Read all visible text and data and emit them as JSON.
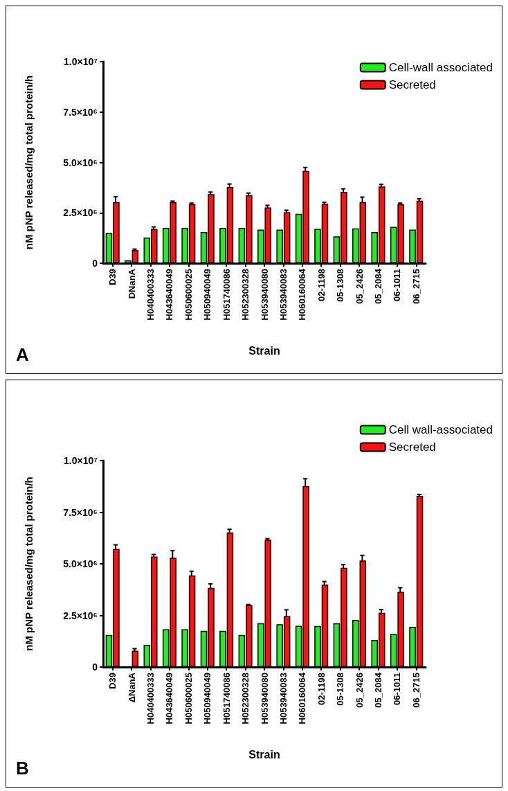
{
  "chart_data": [
    {
      "type": "bar",
      "xlabel": "Strain",
      "ylabel": "nM pNP released/mg total protein/h",
      "annotations": [
        "A"
      ],
      "legend": "top right",
      "grid": false,
      "categories": [
        "D39",
        "DNanA",
        "H040400333",
        "H043640049",
        "H050600025",
        "H050940049",
        "H051740086",
        "H052300328",
        "H053940080",
        "H053940083",
        "H060160064",
        "02-1198",
        "05-1308",
        "05_2426",
        "05_2084",
        "06-1011",
        "06_2715"
      ],
      "ylim": [
        0,
        10000000
      ],
      "yticks": [
        0,
        {
          "value": 2500000,
          "label": "2.5×10⁶"
        },
        {
          "value": 5000000,
          "label": "5.0×10⁶"
        },
        {
          "value": 7500000,
          "label": "7.5×10⁶"
        },
        {
          "value": 10000000,
          "label": "1.0×10⁷"
        }
      ],
      "series": [
        {
          "name": "Cell-wall associated",
          "color": "#22ee22",
          "values": [
            1500000,
            150000,
            1270000,
            1750000,
            1750000,
            1550000,
            1750000,
            1750000,
            1670000,
            1670000,
            2450000,
            1700000,
            1330000,
            1730000,
            1550000,
            1800000,
            1670000
          ]
        },
        {
          "name": "Secreted",
          "color": "#ff1111",
          "values": [
            3030000,
            650000,
            1700000,
            3030000,
            2930000,
            3430000,
            3780000,
            3380000,
            2770000,
            2530000,
            4580000,
            2950000,
            3540000,
            3030000,
            3810000,
            2930000,
            3100000
          ],
          "errors": [
            270000,
            50000,
            100000,
            50000,
            50000,
            100000,
            150000,
            100000,
            100000,
            100000,
            170000,
            70000,
            150000,
            250000,
            100000,
            50000,
            100000
          ]
        }
      ]
    },
    {
      "type": "bar",
      "xlabel": "Strain",
      "ylabel": "nM pNP released/mg total protein/h",
      "annotations": [
        "B"
      ],
      "legend": "top right",
      "grid": false,
      "categories": [
        "D39",
        "ΔNanA",
        "H040400333",
        "H043640049",
        "H050600025",
        "H050940049",
        "H051740086",
        "H052300328",
        "H053940080",
        "H053940083",
        "H060160064",
        "02-1198",
        "05-1308",
        "05_2426",
        "05_2084",
        "06-1011",
        "06_2715"
      ],
      "ylim": [
        0,
        10000000
      ],
      "yticks": [
        0,
        {
          "value": 2500000,
          "label": "2.5×10⁶"
        },
        {
          "value": 5000000,
          "label": "5.0×10⁶"
        },
        {
          "value": 7500000,
          "label": "7.5×10⁶"
        },
        {
          "value": 10000000,
          "label": "1.0×10⁷"
        }
      ],
      "series": [
        {
          "name": "Cell wall-associated",
          "color": "#22ee22",
          "values": [
            1550000,
            null,
            1070000,
            1830000,
            1830000,
            1750000,
            1750000,
            1550000,
            2120000,
            2070000,
            2000000,
            1990000,
            2120000,
            2280000,
            1310000,
            1600000,
            1950000
          ]
        },
        {
          "name": "Secreted",
          "color": "#ff1111",
          "values": [
            5720000,
            790000,
            5350000,
            5290000,
            4440000,
            3830000,
            6520000,
            3000000,
            6170000,
            2470000,
            8770000,
            3990000,
            4810000,
            5160000,
            2630000,
            3640000,
            8290000
          ],
          "errors": [
            200000,
            100000,
            100000,
            350000,
            200000,
            200000,
            150000,
            30000,
            50000,
            300000,
            350000,
            150000,
            150000,
            250000,
            150000,
            200000,
            70000
          ]
        }
      ]
    }
  ]
}
